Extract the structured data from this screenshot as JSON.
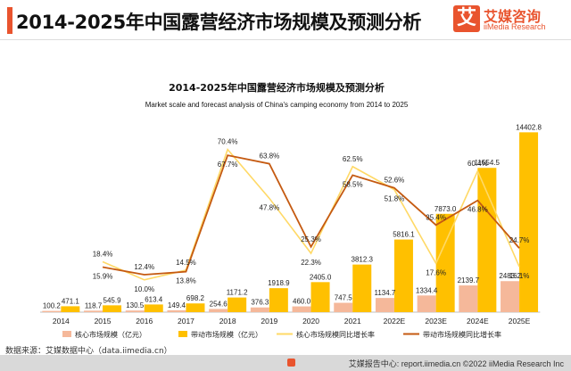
{
  "header": {
    "title": "2014-2025年中国露营经济市场规模及预测分析",
    "logo_mark": "艾",
    "logo_name": "艾媒咨询",
    "logo_sub": "iiMedia Research"
  },
  "source": "数据来源：艾媒数据中心（data.iimedia.cn）",
  "footer": "艾媒报告中心: report.iimedia.cn  ©2022  iiMedia Research  Inc",
  "colors": {
    "core_bar": "#f5b89a",
    "driven_bar": "#ffc000",
    "core_line": "#ffd966",
    "driven_line": "#c55a11",
    "accent": "#e9542e"
  },
  "chart_data": {
    "type": "bar",
    "title": "2014-2025年中国露营经济市场规模及预测分析",
    "subtitle": "Market scale and forecast analysis of China's camping economy from 2014 to 2025",
    "categories": [
      "2014",
      "2015",
      "2016",
      "2017",
      "2018",
      "2019",
      "2020",
      "2021",
      "2022E",
      "2023E",
      "2024E",
      "2025E"
    ],
    "series": [
      {
        "name": "核心市场规模（亿元）",
        "type": "bar",
        "values": [
          100.2,
          118.7,
          130.5,
          149.4,
          254.6,
          376.3,
          460.0,
          747.5,
          1134.7,
          1334.4,
          2139.7,
          2483.2
        ],
        "labels": [
          "100.2",
          "118.7",
          "130.5",
          "149.4",
          "254.6",
          "376.3",
          "460.0",
          "747.5",
          "1134.7",
          "1334.4",
          "2139.7",
          "2483.2"
        ]
      },
      {
        "name": "带动市场规模（亿元）",
        "type": "bar",
        "values": [
          471.1,
          545.9,
          613.4,
          698.2,
          1171.2,
          1918.9,
          2405.0,
          3812.3,
          5816.1,
          7873.0,
          11554.5,
          14402.8
        ],
        "labels": [
          "471.1",
          "545.9",
          "613.4",
          "698.2",
          "1171.2",
          "1918.9",
          "2405.0",
          "3812.3",
          "5816.1",
          "7873.0",
          "11554.5",
          "14402.8"
        ]
      },
      {
        "name": "核心市场规模同比增长率",
        "type": "line",
        "values": [
          null,
          18.4,
          10.0,
          14.5,
          70.4,
          47.8,
          22.3,
          62.5,
          51.8,
          17.6,
          60.4,
          16.1
        ],
        "labels": [
          "",
          "18.4%",
          "10.0%",
          "14.5%",
          "70.4%",
          "47.8%",
          "22.3%",
          "62.5%",
          "51.8%",
          "17.6%",
          "60.4%",
          "16.1%"
        ]
      },
      {
        "name": "带动市场规模同比增长率",
        "type": "line",
        "values": [
          null,
          15.9,
          12.4,
          13.8,
          67.7,
          63.8,
          25.3,
          58.5,
          52.6,
          35.4,
          46.8,
          24.7
        ],
        "labels": [
          "",
          "15.9%",
          "12.4%",
          "13.8%",
          "67.7%",
          "63.8%",
          "25.3%",
          "58.5%",
          "52.6%",
          "35.4%",
          "46.8%",
          "24.7%"
        ]
      }
    ],
    "legend_position": "bottom"
  }
}
